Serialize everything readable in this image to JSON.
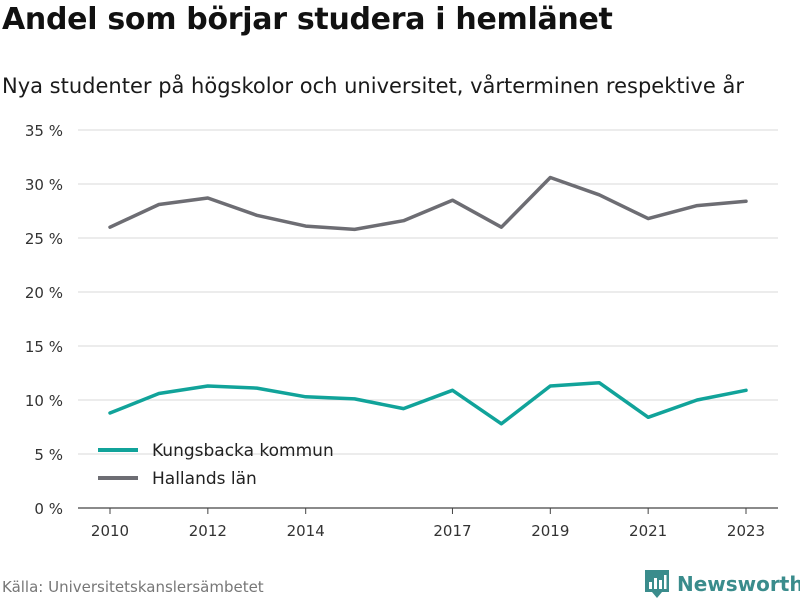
{
  "title": "Andel som börjar studera i hemlänet",
  "subtitle": "Nya studenter på högskolor och universitet, vårterminen respektive år",
  "source": "Källa: Universitetskanslersämbetet",
  "brand": {
    "name": "Newsworthy",
    "icon": "newsworthy-logo-icon",
    "color": "#3a8c8c"
  },
  "chart_data": {
    "type": "line",
    "x": [
      2010,
      2011,
      2012,
      2013,
      2014,
      2015,
      2016,
      2017,
      2018,
      2019,
      2020,
      2021,
      2022,
      2023
    ],
    "x_ticks": [
      "2010",
      "2012",
      "2014",
      "2017",
      "2019",
      "2021",
      "2023"
    ],
    "x_tick_values": [
      2010,
      2012,
      2014,
      2017,
      2019,
      2021,
      2023
    ],
    "xlim": [
      2010,
      2023
    ],
    "ylim": [
      0,
      35
    ],
    "y_ticks": [
      "0 %",
      "5 %",
      "10 %",
      "15 %",
      "20 %",
      "25 %",
      "30 %",
      "35 %"
    ],
    "y_tick_values": [
      0,
      5,
      10,
      15,
      20,
      25,
      30,
      35
    ],
    "grid": true,
    "legend_position": "bottom-left",
    "series": [
      {
        "name": "Kungsbacka kommun",
        "color": "#11a39a",
        "values": [
          8.8,
          10.6,
          11.3,
          11.1,
          10.3,
          10.1,
          9.2,
          10.9,
          7.8,
          11.3,
          11.6,
          8.4,
          10.0,
          10.9
        ]
      },
      {
        "name": "Hallands län",
        "color": "#6d6d73",
        "values": [
          26.0,
          28.1,
          28.7,
          27.1,
          26.1,
          25.8,
          26.6,
          28.5,
          26.0,
          30.6,
          29.0,
          26.8,
          28.0,
          28.4
        ]
      }
    ]
  }
}
